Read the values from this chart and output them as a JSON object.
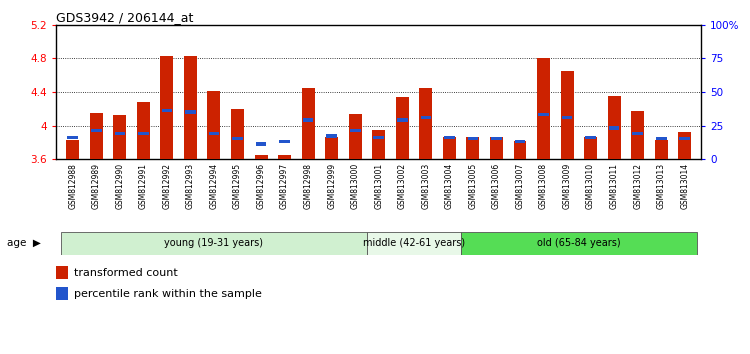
{
  "title": "GDS3942 / 206144_at",
  "samples": [
    "GSM812988",
    "GSM812989",
    "GSM812990",
    "GSM812991",
    "GSM812992",
    "GSM812993",
    "GSM812994",
    "GSM812995",
    "GSM812996",
    "GSM812997",
    "GSM812998",
    "GSM812999",
    "GSM813000",
    "GSM813001",
    "GSM813002",
    "GSM813003",
    "GSM813004",
    "GSM813005",
    "GSM813006",
    "GSM813007",
    "GSM813008",
    "GSM813009",
    "GSM813010",
    "GSM813011",
    "GSM813012",
    "GSM813013",
    "GSM813014"
  ],
  "transformed_count": [
    3.83,
    4.15,
    4.13,
    4.28,
    4.83,
    4.83,
    4.41,
    4.2,
    3.65,
    3.65,
    4.45,
    3.87,
    4.14,
    3.95,
    4.34,
    4.45,
    3.87,
    3.87,
    3.87,
    3.82,
    4.8,
    4.65,
    3.87,
    4.35,
    4.18,
    3.83,
    3.93
  ],
  "percentile_rank": [
    15,
    20,
    18,
    18,
    35,
    34,
    18,
    14,
    10,
    12,
    28,
    16,
    20,
    15,
    28,
    30,
    15,
    14,
    14,
    12,
    32,
    30,
    15,
    22,
    18,
    14,
    14
  ],
  "ymin": 3.6,
  "ymax": 5.2,
  "yticks_left": [
    3.6,
    4.0,
    4.4,
    4.8,
    5.2
  ],
  "ytick_labels_left": [
    "3.6",
    "4",
    "4.4",
    "4.8",
    "5.2"
  ],
  "yticks_right_pct": [
    0,
    25,
    50,
    75,
    100
  ],
  "ytick_labels_right": [
    "0",
    "25",
    "50",
    "75",
    "100%"
  ],
  "bar_color": "#cc2200",
  "percentile_color": "#2255cc",
  "plot_bg": "#ffffff",
  "xtick_bg": "#d8d8d8",
  "groups": [
    {
      "label": "young (19-31 years)",
      "start": 0,
      "end": 13,
      "color": "#d0f0d0"
    },
    {
      "label": "middle (42-61 years)",
      "start": 13,
      "end": 17,
      "color": "#e8f8e8"
    },
    {
      "label": "old (65-84 years)",
      "start": 17,
      "end": 27,
      "color": "#55dd55"
    }
  ],
  "age_label": "age",
  "legend1": "transformed count",
  "legend2": "percentile rank within the sample"
}
